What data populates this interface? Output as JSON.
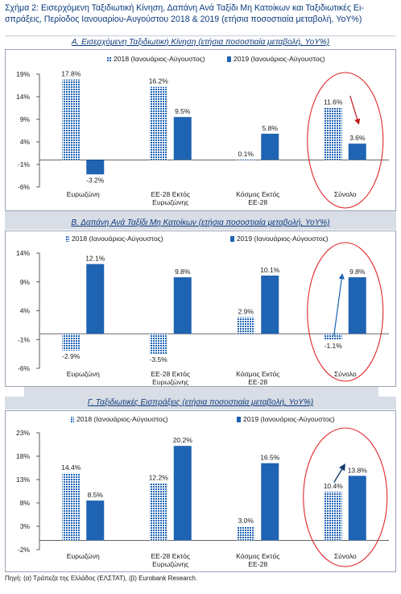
{
  "figure": {
    "title": "Σχήμα 2: Εισερχόμενη Ταξιδιωτική Κίνηση, Δαπάνη Ανά Ταξίδι Μη Κατοίκων και Ταξιδιωτικές Ει-σπράξεις, Περίοδος Ιανουαρίου-Αυγούστου 2018 & 2019 (ετήσια ποσοστιαία μεταβολή, YoY%)",
    "source": "Πηγή: (α) Τράπεζα της Ελλάδος (ΕΛΣΤΑΤ), (β) Eurobank Research."
  },
  "colors": {
    "series_2018": "#1f63b3",
    "series_2019": "#1f63b3",
    "highlight_circle": "#e0262b",
    "arrow_down": "#c0151b",
    "arrow_up": "#1f63b3",
    "arrow_up_c": "#123a6b",
    "title_blue": "#0c3b7c"
  },
  "chart_data": [
    {
      "type": "bar",
      "title": "Α. Εισερχόμενη Ταξιδιωτική Κίνηση (ετήσια ποσοστιαία μεταβολή, YoY%)",
      "categories": [
        "Ευρωζώνη",
        "ΕΕ-28 Εκτός Ευρωζώνης",
        "Κόσμος Εκτός ΕΕ-28",
        "Σύνολο"
      ],
      "series": [
        {
          "name": "2018 (Ιανουάριος-Αύγουστος)",
          "values": [
            17.8,
            16.2,
            0.1,
            11.6
          ],
          "labels": [
            "17.8%",
            "16.2%",
            "0.1%",
            "11.6%"
          ]
        },
        {
          "name": "2019 (Ιανουάριος-Αύγουστος)",
          "values": [
            -3.2,
            9.5,
            5.8,
            3.6
          ],
          "labels": [
            "-3.2%",
            "9.5%",
            "5.8%",
            "3.6%"
          ]
        }
      ],
      "ylim": [
        -6,
        19
      ],
      "yticks": [
        19,
        14,
        9,
        4,
        -1,
        -6
      ],
      "ytick_labels": [
        "19%",
        "14%",
        "9%",
        "4%",
        "-1%",
        "-6%"
      ],
      "legend": "top-right",
      "highlight": "Σύνολο",
      "arrow": "down"
    },
    {
      "type": "bar",
      "title": "Β. Δαπάνη Ανά Ταξίδι Μη Κατοίκων (ετήσια ποσοστιαία μεταβολή, YoY%)",
      "categories": [
        "Ευρωζώνη",
        "ΕΕ-28 Εκτός Ευρωζώνης",
        "Κόσμος Εκτός ΕΕ-28",
        "Σύνολο"
      ],
      "series": [
        {
          "name": "2018 (Ιανουάριος-Αύγουστος)",
          "values": [
            -2.9,
            -3.5,
            2.9,
            -1.1
          ],
          "labels": [
            "-2.9%",
            "-3.5%",
            "2.9%",
            "-1.1%"
          ]
        },
        {
          "name": "2019 (Ιανουάριος-Αύγουστος)",
          "values": [
            12.1,
            9.8,
            10.1,
            9.8
          ],
          "labels": [
            "12.1%",
            "9.8%",
            "10.1%",
            "9.8%"
          ]
        }
      ],
      "ylim": [
        -6,
        14
      ],
      "yticks": [
        14,
        9,
        4,
        -1,
        -6
      ],
      "ytick_labels": [
        "14%",
        "9%",
        "4%",
        "-1%",
        "-6%"
      ],
      "legend": "top",
      "highlight": "Σύνολο",
      "arrow": "up"
    },
    {
      "type": "bar",
      "title": "Γ. Ταξιδιωτικές Εισπράξεις (ετήσια ποσοστιαία μεταβολή, YoY%)",
      "categories": [
        "Ευρωζώνη",
        "ΕΕ-28 Εκτός Ευρωζώνης",
        "Κόσμος Εκτός ΕΕ-28",
        "Σύνολο"
      ],
      "series": [
        {
          "name": "2018 (Ιανουάριος-Αύγουστος)",
          "values": [
            14.4,
            12.2,
            3.0,
            10.4
          ],
          "labels": [
            "14.4%",
            "12.2%",
            "3.0%",
            "10.4%"
          ]
        },
        {
          "name": "2019 (Ιανουάριος-Αύγουστος)",
          "values": [
            8.5,
            20.2,
            16.5,
            13.8
          ],
          "labels": [
            "8.5%",
            "20.2%",
            "16.5%",
            "13.8%"
          ]
        }
      ],
      "ylim": [
        -2,
        23
      ],
      "yticks": [
        23,
        18,
        13,
        8,
        3,
        -2
      ],
      "ytick_labels": [
        "23%",
        "18%",
        "13%",
        "8%",
        "3%",
        "-2%"
      ],
      "legend": "top",
      "highlight": "Σύνολο",
      "arrow": "up"
    }
  ]
}
